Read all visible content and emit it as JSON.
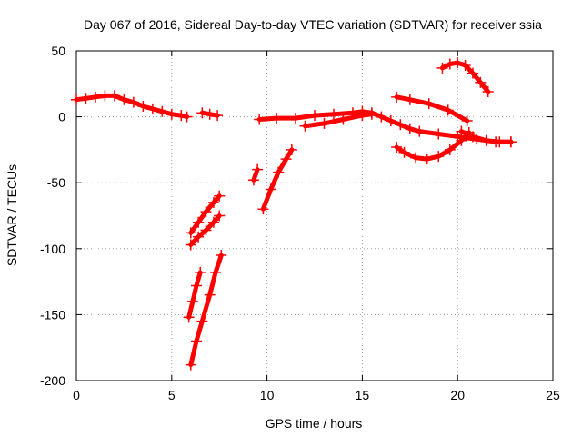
{
  "chart_data": {
    "type": "scatter",
    "title": "Day 067 of 2016, Sidereal Day-to-day VTEC variation (SDTVAR) for receiver ssia",
    "xlabel": "GPS time / hours",
    "ylabel": "SDTVAR / TECUs",
    "xlim": [
      0,
      25
    ],
    "ylim": [
      -200,
      50
    ],
    "xticks": [
      0,
      5,
      10,
      15,
      20,
      25
    ],
    "yticks": [
      -200,
      -150,
      -100,
      -50,
      0,
      50
    ],
    "grid": true,
    "color": "#ff0000",
    "series": [
      {
        "x": [
          0.0,
          0.5,
          1.0,
          1.5,
          2.0,
          2.5,
          3.0,
          3.5,
          4.0,
          4.5,
          5.0,
          5.5,
          5.8
        ],
        "y": [
          13,
          14,
          15,
          16,
          16,
          13,
          11,
          8,
          6,
          4,
          2,
          1,
          0
        ]
      },
      {
        "x": [
          6.6,
          7.0,
          7.4
        ],
        "y": [
          3,
          2,
          1
        ]
      },
      {
        "x": [
          6.0,
          6.4,
          6.8,
          7.2,
          7.5
        ],
        "y": [
          -88,
          -80,
          -72,
          -65,
          -60
        ]
      },
      {
        "x": [
          6.0,
          6.4,
          6.8,
          7.2,
          7.5
        ],
        "y": [
          -97,
          -91,
          -86,
          -80,
          -75
        ]
      },
      {
        "x": [
          5.9,
          6.1,
          6.3,
          6.5
        ],
        "y": [
          -152,
          -140,
          -128,
          -118
        ]
      },
      {
        "x": [
          6.0,
          6.3,
          6.6,
          7.0,
          7.3,
          7.6
        ],
        "y": [
          -188,
          -170,
          -155,
          -135,
          -118,
          -105
        ]
      },
      {
        "x": [
          9.3,
          9.5
        ],
        "y": [
          -48,
          -40
        ]
      },
      {
        "x": [
          9.8,
          10.2,
          10.6,
          11.0,
          11.3
        ],
        "y": [
          -70,
          -55,
          -42,
          -32,
          -25
        ]
      },
      {
        "x": [
          9.6,
          10.5,
          11.5,
          12.5,
          13.5,
          14.5,
          15.0,
          15.5,
          16.0,
          16.5,
          17.0,
          17.5,
          18.0,
          19.0,
          20.0,
          21.0,
          22.0,
          22.8
        ],
        "y": [
          -2,
          -1,
          -1,
          1,
          2,
          3,
          4,
          3,
          0,
          -3,
          -6,
          -9,
          -11,
          -13,
          -15,
          -17,
          -19,
          -19
        ]
      },
      {
        "x": [
          12.0,
          13.0,
          14.0,
          15.0,
          15.5
        ],
        "y": [
          -7,
          -5,
          -2,
          1,
          2
        ]
      },
      {
        "x": [
          16.8,
          17.5,
          18.5,
          19.5,
          20.5
        ],
        "y": [
          15,
          13,
          10,
          5,
          -3
        ]
      },
      {
        "x": [
          16.8,
          17.2,
          17.8,
          18.4,
          19.0,
          19.6,
          20.2,
          20.6
        ],
        "y": [
          -23,
          -27,
          -31,
          -32,
          -30,
          -25,
          -18,
          -12
        ]
      },
      {
        "x": [
          19.2,
          19.6,
          20.0,
          20.4,
          20.8,
          21.2,
          21.6
        ],
        "y": [
          37,
          40,
          41,
          39,
          33,
          26,
          19
        ]
      },
      {
        "x": [
          20.2,
          20.8,
          21.5,
          22.2,
          22.8
        ],
        "y": [
          -11,
          -15,
          -18,
          -19,
          -19
        ]
      }
    ]
  }
}
